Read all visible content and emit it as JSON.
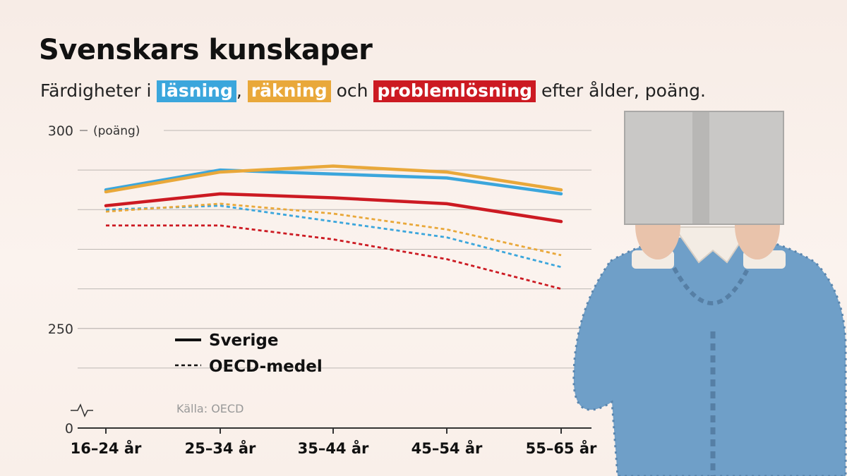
{
  "title": "Svenskars kunskaper",
  "subtitle": {
    "prefix": "Färdigheter i ",
    "reading": "läsning",
    "comma": ",",
    "math": "räkning",
    "and": "och",
    "problem": "problemlösning",
    "suffix": "efter ålder, poäng."
  },
  "colors": {
    "reading": "#3ba6dc",
    "math": "#e9a83a",
    "problem": "#cc1a22"
  },
  "chart_data": {
    "type": "line",
    "categories": [
      "16–24 år",
      "25–34 år",
      "35–44 år",
      "45–54 år",
      "55–65 år"
    ],
    "yunit": "(poäng)",
    "yticks": [
      {
        "value": 300,
        "label": "300"
      },
      {
        "value": 250,
        "label": "250"
      },
      {
        "value": 0,
        "label": "0"
      }
    ],
    "ylim": [
      235,
      300
    ],
    "axis_break": true,
    "grid": true,
    "legend": {
      "position": "bottom-left",
      "solid_label": "Sverige",
      "dashed_label": "OECD-medel"
    },
    "source": "Källa: OECD",
    "series": [
      {
        "name": "Sverige – läsning",
        "color": "reading",
        "style": "solid",
        "values": [
          285,
          290,
          289,
          288,
          284
        ]
      },
      {
        "name": "Sverige – räkning",
        "color": "math",
        "style": "solid",
        "values": [
          284.5,
          289.5,
          291,
          289.5,
          285
        ]
      },
      {
        "name": "Sverige – problemlösning",
        "color": "problem",
        "style": "solid",
        "values": [
          281,
          284,
          283,
          281.5,
          277
        ]
      },
      {
        "name": "OECD-medel – läsning",
        "color": "reading",
        "style": "dashed",
        "values": [
          280,
          281,
          277,
          273,
          265.5
        ]
      },
      {
        "name": "OECD-medel – räkning",
        "color": "math",
        "style": "dashed",
        "values": [
          279.5,
          281.5,
          279,
          275,
          268.5
        ]
      },
      {
        "name": "OECD-medel – problemlösning",
        "color": "problem",
        "style": "dashed",
        "values": [
          276,
          276,
          272.5,
          267.5,
          260
        ]
      }
    ]
  }
}
